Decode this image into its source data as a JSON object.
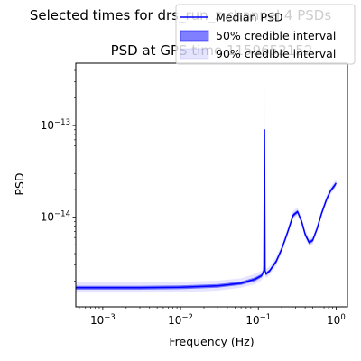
{
  "figure": {
    "suptitle": "Selected times for drs_run_z channel 4 PSDs",
    "title": "PSD at GPS time 1159652152"
  },
  "chart_data": {
    "type": "line",
    "title": "PSD at GPS time 1159652152",
    "xlabel": "Frequency (Hz)",
    "ylabel": "PSD",
    "xscale": "log",
    "yscale": "log",
    "xlim": [
      0.00045,
      1.4
    ],
    "ylim": [
      1.05e-15,
      4.8e-13
    ],
    "xticks": [
      {
        "value": 0.001,
        "base": "10",
        "exp": "−3"
      },
      {
        "value": 0.01,
        "base": "10",
        "exp": "−2"
      },
      {
        "value": 0.1,
        "base": "10",
        "exp": "−1"
      },
      {
        "value": 1,
        "base": "10",
        "exp": "0"
      }
    ],
    "yticks": [
      {
        "value": 1e-13,
        "base": "10",
        "exp": "−13"
      },
      {
        "value": 1e-14,
        "base": "10",
        "exp": "−14"
      }
    ],
    "grid": false,
    "legend_position": "top-right",
    "series": [
      {
        "name": "Median PSD",
        "kind": "line",
        "color": "#0000ff"
      },
      {
        "name": "50% credible interval",
        "kind": "band",
        "color": "#0000ff",
        "opacity": 0.5
      },
      {
        "name": "90% credible interval",
        "kind": "band",
        "color": "#0000ff",
        "opacity": 0.1
      }
    ],
    "x": [
      0.00045,
      0.001,
      0.003,
      0.01,
      0.03,
      0.06,
      0.09,
      0.11,
      0.118,
      0.12,
      0.122,
      0.126,
      0.14,
      0.17,
      0.2,
      0.24,
      0.28,
      0.32,
      0.36,
      0.4,
      0.45,
      0.5,
      0.57,
      0.65,
      0.75,
      0.85,
      0.95,
      1.0
    ],
    "median": [
      1.7e-15,
      1.7e-15,
      1.7e-15,
      1.72e-15,
      1.78e-15,
      1.9e-15,
      2.1e-15,
      2.3e-15,
      2.6e-15,
      9e-14,
      2.6e-15,
      2.4e-15,
      2.6e-15,
      3.3e-15,
      4.5e-15,
      7e-15,
      1.05e-14,
      1.15e-14,
      9e-15,
      6.5e-15,
      5.3e-15,
      5.6e-15,
      7.5e-15,
      1.1e-14,
      1.55e-14,
      1.95e-14,
      2.2e-14,
      2.35e-14
    ],
    "ci50_low": [
      1.62e-15,
      1.62e-15,
      1.62e-15,
      1.64e-15,
      1.7e-15,
      1.82e-15,
      2e-15,
      2.2e-15,
      2.45e-15,
      8.5e-14,
      2.45e-15,
      2.3e-15,
      2.5e-15,
      3.15e-15,
      4.3e-15,
      6.7e-15,
      1e-14,
      1.1e-14,
      8.6e-15,
      6.2e-15,
      5.05e-15,
      5.35e-15,
      7.2e-15,
      1.05e-14,
      1.48e-14,
      1.87e-14,
      2.1e-14,
      2.25e-14
    ],
    "ci50_high": [
      1.78e-15,
      1.78e-15,
      1.78e-15,
      1.8e-15,
      1.86e-15,
      1.98e-15,
      2.2e-15,
      2.4e-15,
      2.75e-15,
      9.5e-14,
      2.75e-15,
      2.5e-15,
      2.7e-15,
      3.45e-15,
      4.7e-15,
      7.3e-15,
      1.1e-14,
      1.2e-14,
      9.4e-15,
      6.8e-15,
      5.55e-15,
      5.85e-15,
      7.8e-15,
      1.15e-14,
      1.62e-14,
      2.03e-14,
      2.3e-14,
      2.45e-14
    ],
    "ci90_low": [
      1.5e-15,
      1.5e-15,
      1.5e-15,
      1.52e-15,
      1.58e-15,
      1.7e-15,
      1.85e-15,
      2.05e-15,
      2.25e-15,
      7e-14,
      2.25e-15,
      2.15e-15,
      2.35e-15,
      2.95e-15,
      4.05e-15,
      6.3e-15,
      9.5e-15,
      1.04e-14,
      8.1e-15,
      5.85e-15,
      4.8e-15,
      5.05e-15,
      6.8e-15,
      9.9e-15,
      1.4e-14,
      1.77e-14,
      2e-14,
      2.15e-14
    ],
    "ci90_high": [
      1.95e-15,
      1.95e-15,
      1.95e-15,
      1.97e-15,
      2.03e-15,
      2.15e-15,
      2.4e-15,
      2.6e-15,
      3e-15,
      3.4e-13,
      3e-15,
      2.7e-15,
      2.9e-15,
      3.7e-15,
      5e-15,
      7.8e-15,
      1.17e-14,
      1.28e-14,
      1e-14,
      7.3e-15,
      5.9e-15,
      6.2e-15,
      8.3e-15,
      1.22e-14,
      1.72e-14,
      2.15e-14,
      2.45e-14,
      2.6e-14
    ]
  }
}
